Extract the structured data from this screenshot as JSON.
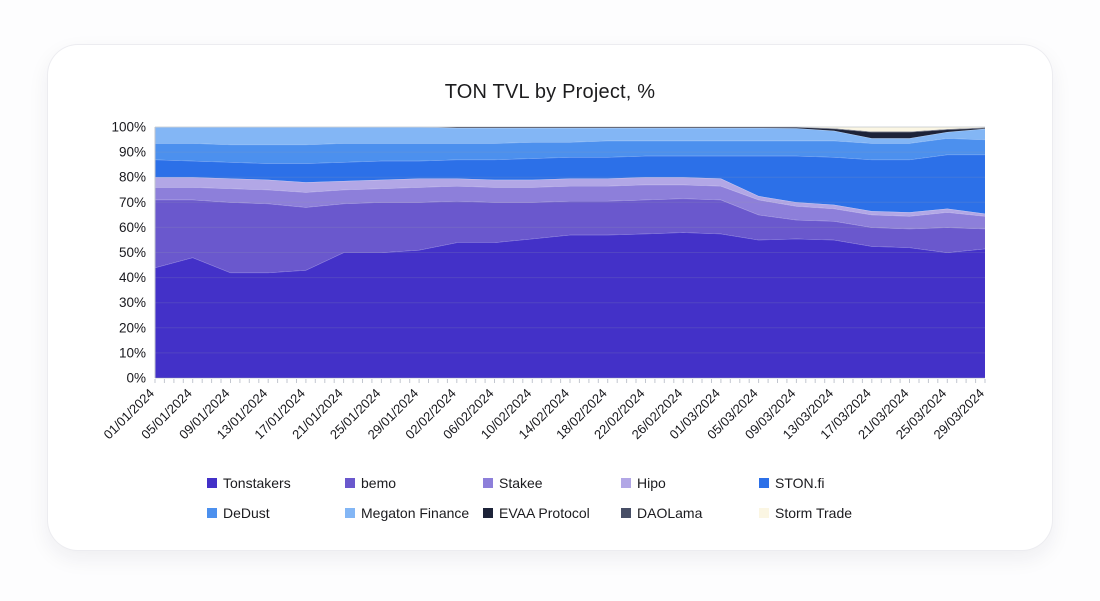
{
  "page": {
    "background": "#fdfdfe",
    "card_background": "#ffffff"
  },
  "chart_data": {
    "type": "area",
    "stacked": true,
    "units": "percent",
    "title": "TON TVL by Project, %",
    "legend_position": "bottom",
    "grid": "horizontal",
    "ylim": [
      0,
      100
    ],
    "y_tick_labels": [
      "0%",
      "10%",
      "20%",
      "30%",
      "40%",
      "50%",
      "60%",
      "70%",
      "80%",
      "90%",
      "100%"
    ],
    "categories": [
      "01/01/2024",
      "05/01/2024",
      "09/01/2024",
      "13/01/2024",
      "17/01/2024",
      "21/01/2024",
      "25/01/2024",
      "29/01/2024",
      "02/02/2024",
      "06/02/2024",
      "10/02/2024",
      "14/02/2024",
      "18/02/2024",
      "22/02/2024",
      "26/02/2024",
      "01/03/2024",
      "05/03/2024",
      "09/03/2024",
      "13/03/2024",
      "17/03/2024",
      "21/03/2024",
      "25/03/2024",
      "29/03/2024"
    ],
    "series": [
      {
        "name": "Tonstakers",
        "color": "#4331c8",
        "values": [
          44,
          48,
          42,
          42,
          43,
          50,
          50,
          51,
          54,
          54,
          55.5,
          57,
          57,
          57.5,
          58,
          57.5,
          55,
          55.5,
          55,
          52.5,
          52,
          50,
          51.5
        ]
      },
      {
        "name": "bemo",
        "color": "#6a58cd",
        "values": [
          27,
          23,
          28,
          27.5,
          25,
          19.5,
          20,
          19,
          16.5,
          16,
          14.5,
          13.5,
          13.5,
          13.5,
          13.5,
          13.5,
          10,
          7.5,
          7.5,
          7.5,
          7.5,
          10,
          8
        ]
      },
      {
        "name": "Stakee",
        "color": "#8d7fda",
        "values": [
          5,
          5,
          5.5,
          5.5,
          6,
          5.5,
          5.5,
          6,
          6,
          6,
          6,
          6,
          6,
          6,
          5.5,
          5.5,
          6,
          5.5,
          5,
          5,
          5,
          6,
          5
        ]
      },
      {
        "name": "Hipo",
        "color": "#b2a7e6",
        "values": [
          4,
          4,
          4,
          4,
          4,
          3.5,
          3.5,
          3.5,
          3,
          3,
          3,
          3,
          3,
          3,
          3,
          3,
          1.5,
          1.5,
          1.5,
          1.5,
          1.5,
          1.5,
          1
        ]
      },
      {
        "name": "STON.fi",
        "color": "#2c70e8",
        "values": [
          7,
          6.5,
          6.5,
          6.5,
          7.5,
          7.5,
          7.5,
          7,
          7.5,
          8,
          8.5,
          8.5,
          8.5,
          8.5,
          8.5,
          9,
          16,
          18.5,
          19,
          20.5,
          21,
          21.5,
          23.5
        ]
      },
      {
        "name": "DeDust",
        "color": "#4c90ee",
        "values": [
          6.5,
          7,
          7,
          7.5,
          7.5,
          7.5,
          7,
          7,
          6.5,
          6.5,
          6.5,
          6,
          6.5,
          6,
          6,
          6,
          6,
          6,
          6.5,
          6.5,
          6.5,
          6.5,
          6
        ]
      },
      {
        "name": "Megaton Finance",
        "color": "#83b6f5",
        "values": [
          6.5,
          6.5,
          7,
          7,
          7,
          6.5,
          6.5,
          6.5,
          6.1,
          6.1,
          5.6,
          5.6,
          5.1,
          5.1,
          5.1,
          5.1,
          5.1,
          5,
          4,
          2,
          2,
          2.5,
          4.3
        ]
      },
      {
        "name": "EVAA Protocol",
        "color": "#1d2339",
        "values": [
          0,
          0,
          0,
          0,
          0,
          0,
          0,
          0,
          0.4,
          0.4,
          0.4,
          0.4,
          0.4,
          0.4,
          0.4,
          0.4,
          0.4,
          0.5,
          0.8,
          2.5,
          2.5,
          1,
          0.3
        ]
      },
      {
        "name": "DAOLama",
        "color": "#474e66",
        "values": [
          0,
          0,
          0,
          0,
          0,
          0,
          0,
          0,
          0,
          0,
          0,
          0,
          0,
          0,
          0,
          0,
          0,
          0,
          0.2,
          0.2,
          0.2,
          0.2,
          0.2
        ]
      },
      {
        "name": "Storm Trade",
        "color": "#fbf6e3",
        "values": [
          0,
          0,
          0,
          0,
          0,
          0,
          0,
          0,
          0,
          0,
          0,
          0,
          0,
          0,
          0,
          0,
          0,
          0,
          0.5,
          1.8,
          1.8,
          0.8,
          0.2
        ]
      }
    ],
    "axis_text_color": "#17171c",
    "gridline_color": "#9aa0ad"
  }
}
